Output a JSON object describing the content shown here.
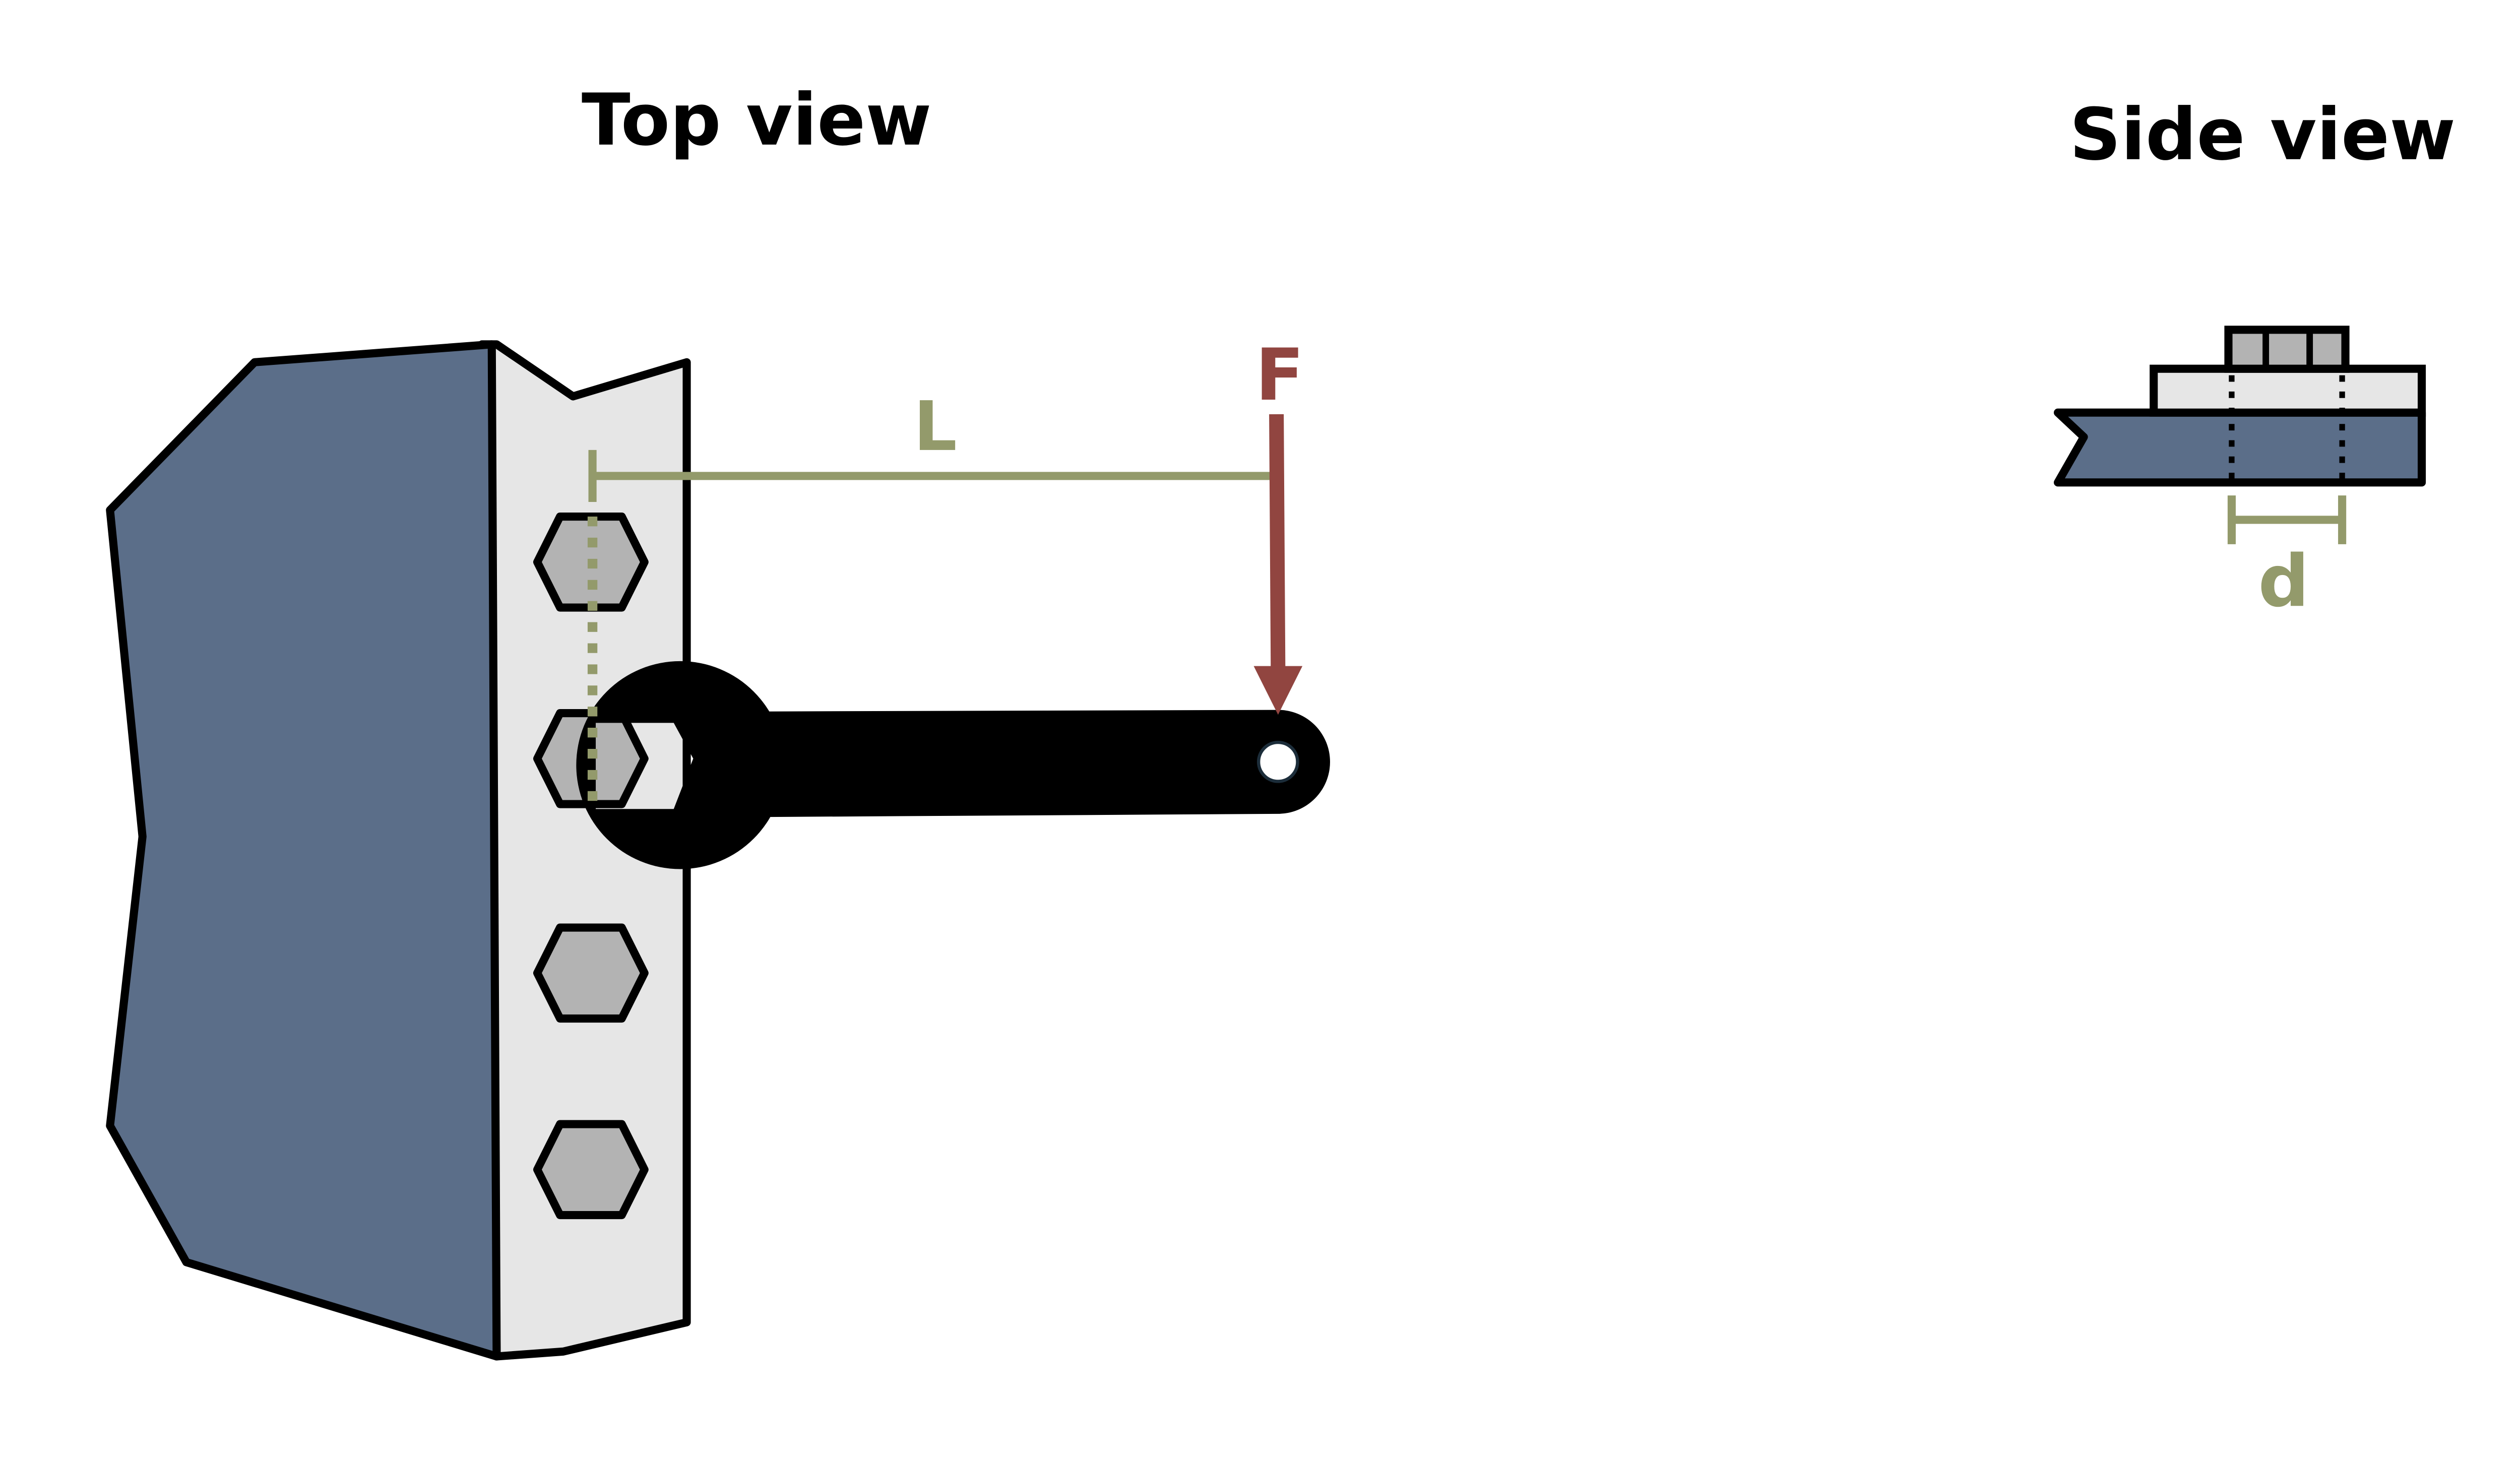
{
  "titles": {
    "top_view": "Top view",
    "side_view": "Side view"
  },
  "labels": {
    "lever_arm": "L",
    "force": "F",
    "bolt_spacing": "d"
  },
  "colors": {
    "wall_blue": "#5b6e89",
    "plate_gray": "#e6e6e6",
    "bolt_gray": "#b3b3b3",
    "outline": "#000000",
    "dimension_green": "#939a6b",
    "force_red": "#914540",
    "wrench_black": "#000000"
  }
}
